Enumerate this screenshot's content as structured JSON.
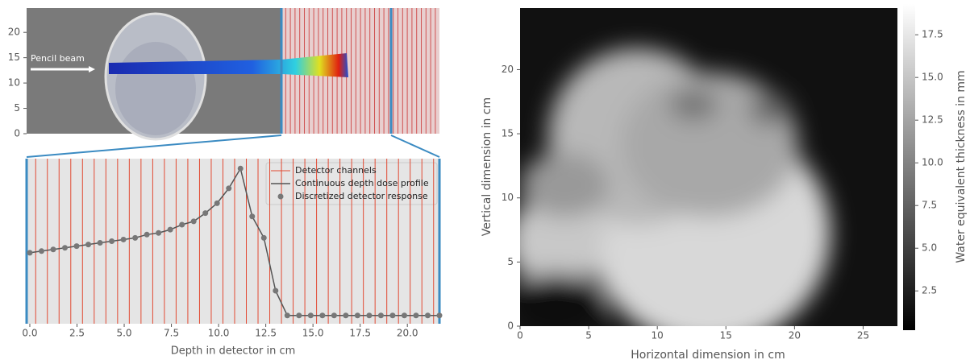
{
  "chart_data": [
    {
      "type": "image",
      "annotation": "Pencil beam",
      "ylim": [
        0,
        24.8
      ],
      "yticks": [
        0,
        5,
        10,
        15,
        20
      ]
    },
    {
      "type": "line",
      "xlabel": "Depth in detector in cm",
      "xlim": [
        -0.17,
        21.7
      ],
      "ylim": [
        0,
        1
      ],
      "xticks": [
        {
          "value": 0,
          "label": "0.0"
        },
        2.5,
        {
          "value": 5,
          "label": "5.0"
        },
        7.5,
        {
          "value": 10,
          "label": "10.0"
        },
        12.5,
        {
          "value": 15,
          "label": "15.0"
        },
        17.5,
        {
          "value": 20,
          "label": "20.0"
        }
      ],
      "series": [
        {
          "name": "Detector channels",
          "color": "#e24a33",
          "x": [
            0.31,
            0.93,
            1.55,
            2.17,
            2.79,
            3.41,
            4.03,
            4.65,
            5.27,
            5.89,
            6.51,
            7.13,
            7.75,
            8.37,
            8.99,
            9.61,
            10.23,
            10.85,
            11.47,
            12.09,
            12.71,
            13.33,
            13.95,
            14.57,
            15.19,
            15.81,
            16.43,
            17.05,
            17.67,
            18.29,
            18.91,
            19.53,
            20.15,
            20.77,
            21.39
          ]
        },
        {
          "name": "Continuous depth dose profile",
          "color": "#555555",
          "x": [
            0,
            0.62,
            1.24,
            1.86,
            2.48,
            3.1,
            3.72,
            4.34,
            4.96,
            5.58,
            6.2,
            6.82,
            7.44,
            8.06,
            8.68,
            9.3,
            9.92,
            10.54,
            11.16,
            11.78,
            12.4,
            13.02,
            13.64,
            14.26,
            14.88,
            15.5,
            16.12,
            16.74,
            17.36,
            17.98,
            18.6,
            19.22,
            19.84,
            20.46,
            21.08,
            21.7
          ],
          "values": [
            0.43,
            0.44,
            0.45,
            0.46,
            0.47,
            0.48,
            0.49,
            0.5,
            0.51,
            0.52,
            0.54,
            0.55,
            0.57,
            0.6,
            0.62,
            0.67,
            0.73,
            0.82,
            0.94,
            0.65,
            0.52,
            0.2,
            0.05,
            0.05,
            0.05,
            0.05,
            0.05,
            0.05,
            0.05,
            0.05,
            0.05,
            0.05,
            0.05,
            0.05,
            0.05,
            0.05
          ]
        },
        {
          "name": "Discretized detector response",
          "color": "#777777",
          "x": [
            0,
            0.62,
            1.24,
            1.86,
            2.48,
            3.1,
            3.72,
            4.34,
            4.96,
            5.58,
            6.2,
            6.82,
            7.44,
            8.06,
            8.68,
            9.3,
            9.92,
            10.54,
            11.16,
            11.78,
            12.4,
            13.02,
            13.64,
            14.26,
            14.88,
            15.5,
            16.12,
            16.74,
            17.36,
            17.98,
            18.6,
            19.22,
            19.84,
            20.46,
            21.08,
            21.7
          ],
          "values": [
            0.43,
            0.44,
            0.45,
            0.46,
            0.47,
            0.48,
            0.49,
            0.5,
            0.51,
            0.52,
            0.54,
            0.55,
            0.57,
            0.6,
            0.62,
            0.67,
            0.73,
            0.82,
            0.94,
            0.65,
            0.52,
            0.2,
            0.05,
            0.05,
            0.05,
            0.05,
            0.05,
            0.05,
            0.05,
            0.05,
            0.05,
            0.05,
            0.05,
            0.05,
            0.05,
            0.05
          ]
        }
      ]
    },
    {
      "type": "heatmap",
      "xlabel": "Horizontal dimension in cm",
      "ylabel": "Vertical dimension in cm",
      "colorbar_label": "Water equivalent thickness in mm",
      "xlim": [
        0,
        27.5
      ],
      "ylim": [
        0,
        24.8
      ],
      "xticks": [
        0,
        5,
        10,
        15,
        20,
        25
      ],
      "yticks": [
        0,
        5,
        10,
        15,
        20
      ],
      "clim": [
        0.2,
        19.3
      ],
      "cticks": [
        2.5,
        {
          "value": 5,
          "label": "5.0"
        },
        7.5,
        {
          "value": 10,
          "label": "10.0"
        },
        12.5,
        {
          "value": 15,
          "label": "15.0"
        },
        17.5
      ]
    }
  ]
}
